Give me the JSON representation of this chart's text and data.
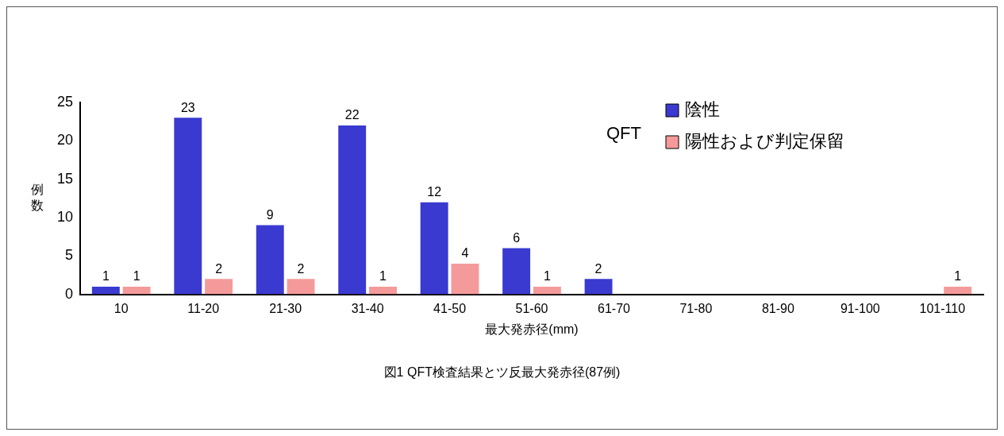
{
  "chart_data": {
    "type": "bar",
    "xlabel": "最大発赤径(mm)",
    "ylabel": "例数",
    "legend_title": "QFT",
    "legend": "top right",
    "categories": [
      "10",
      "11-20",
      "21-30",
      "31-40",
      "41-50",
      "51-60",
      "61-70",
      "71-80",
      "81-90",
      "91-100",
      "101-110"
    ],
    "series": [
      {
        "name": "陰性",
        "color": "#3a3ad0",
        "values": [
          1,
          23,
          9,
          22,
          12,
          6,
          2,
          0,
          0,
          0,
          0
        ],
        "value_labels": [
          "1",
          "23",
          "9",
          "22",
          "12",
          "6",
          "2",
          null,
          null,
          null,
          null
        ]
      },
      {
        "name": "陽性および判定保留",
        "color": "#f59a9a",
        "values": [
          1,
          2,
          2,
          1,
          4,
          1,
          0,
          0,
          0,
          0,
          1
        ],
        "value_labels": [
          "1",
          "2",
          "2",
          "1",
          "4",
          "1",
          null,
          null,
          null,
          null,
          "1"
        ]
      }
    ],
    "ylim": [
      0,
      25
    ],
    "yticks": [
      0,
      5,
      10,
      15,
      20,
      25
    ],
    "grid": false,
    "annotations": [
      "図1  QFT検査結果とツ反最大発赤径(87例)"
    ]
  }
}
